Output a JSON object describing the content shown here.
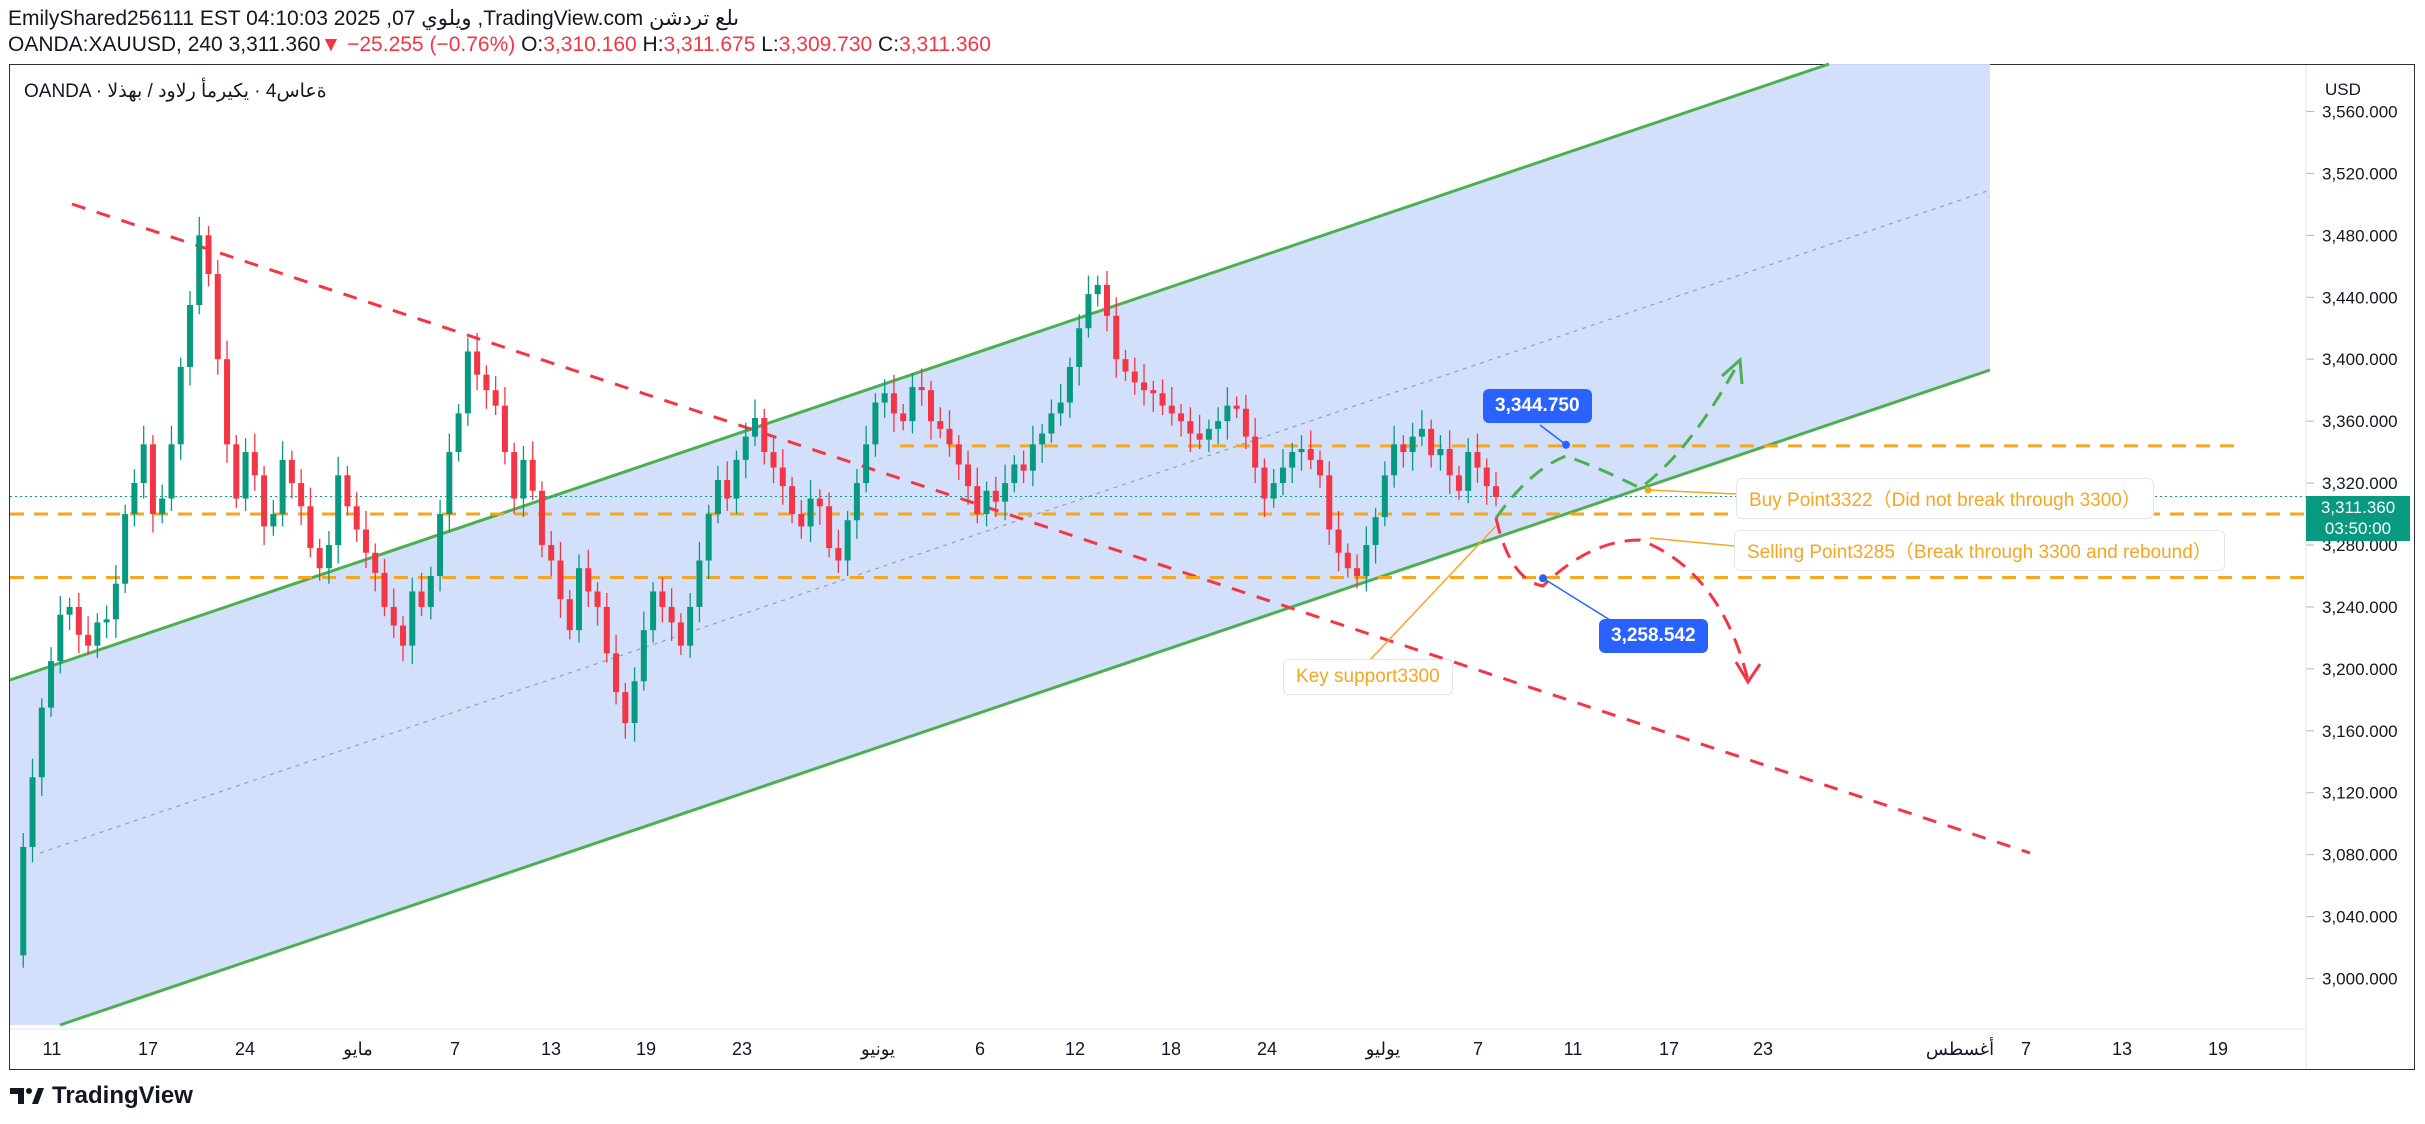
{
  "header": {
    "line1": "EmilyShared256111 EST 04:10:03 2025 ,07 ويلوي ,TradingView.com ىلع تردشن",
    "symbol": "OANDA:XAUUSD, 240",
    "last": "3,311.360",
    "change": "−25.255 (−0.76%)",
    "o_label": "O:",
    "o_value": "3,310.160",
    "h_label": "H:",
    "h_value": "3,311.675",
    "l_label": "L:",
    "l_value": "3,309.730",
    "c_label": "C:",
    "c_value": "3,311.360"
  },
  "legend": "OANDA · ةعاس4 · يكيرمأ رلاود / بهذلا",
  "brand": "TradingView",
  "colors": {
    "channel": "#4caf50",
    "channel_fill": "#d1defb",
    "bear": "#f23645",
    "bull": "#089981",
    "level": "#f5a623",
    "marker": "#2962ff",
    "price_tag": "#089981"
  },
  "chart_data": {
    "type": "candlestick",
    "symbol": "XAUUSD",
    "timeframe": "4h",
    "ylim": [
      2970,
      3590
    ],
    "y_ticks": [
      "3,000.000",
      "3,040.000",
      "3,080.000",
      "3,120.000",
      "3,160.000",
      "3,200.000",
      "3,240.000",
      "3,280.000",
      "3,320.000",
      "3,360.000",
      "3,400.000",
      "3,440.000",
      "3,480.000",
      "3,520.000",
      "3,560.000"
    ],
    "y_unit": "USD",
    "x_ticks": [
      "11",
      "17",
      "24",
      "مايو",
      "7",
      "13",
      "19",
      "23",
      "يونيو",
      "6",
      "12",
      "18",
      "24",
      "يوليو",
      "7",
      "11",
      "17",
      "23",
      "أغسطس",
      "7",
      "13",
      "19"
    ],
    "grid": false,
    "price_now": "3,311.360",
    "countdown": "03:50:00",
    "price_path": [
      3015,
      3085,
      3130,
      3175,
      3205,
      3235,
      3240,
      3222,
      3215,
      3230,
      3232,
      3255,
      3300,
      3320,
      3345,
      3300,
      3310,
      3345,
      3395,
      3435,
      3480,
      3455,
      3400,
      3345,
      3310,
      3340,
      3325,
      3292,
      3300,
      3335,
      3320,
      3305,
      3278,
      3265,
      3280,
      3325,
      3305,
      3290,
      3275,
      3262,
      3240,
      3228,
      3215,
      3250,
      3240,
      3260,
      3300,
      3340,
      3365,
      3405,
      3390,
      3380,
      3370,
      3340,
      3310,
      3335,
      3315,
      3280,
      3270,
      3245,
      3225,
      3265,
      3250,
      3240,
      3210,
      3185,
      3165,
      3192,
      3225,
      3250,
      3240,
      3230,
      3215,
      3240,
      3270,
      3300,
      3322,
      3310,
      3335,
      3350,
      3362,
      3340,
      3330,
      3318,
      3300,
      3292,
      3310,
      3305,
      3278,
      3270,
      3296,
      3320,
      3345,
      3372,
      3378,
      3365,
      3360,
      3382,
      3380,
      3360,
      3355,
      3345,
      3332,
      3318,
      3300,
      3315,
      3308,
      3320,
      3332,
      3328,
      3345,
      3352,
      3365,
      3372,
      3395,
      3420,
      3442,
      3448,
      3428,
      3400,
      3392,
      3385,
      3380,
      3378,
      3370,
      3365,
      3360,
      3352,
      3348,
      3355,
      3360,
      3370,
      3368,
      3350,
      3330,
      3310,
      3320,
      3330,
      3340,
      3342,
      3335,
      3325,
      3290,
      3275,
      3265,
      3260,
      3280,
      3298,
      3325,
      3345,
      3340,
      3350,
      3355,
      3338,
      3342,
      3325,
      3315,
      3340,
      3330,
      3318,
      3311
    ],
    "annotations": {
      "resistance_line": "",
      "levels": [
        3344,
        3300,
        3259
      ],
      "markers": [
        {
          "value": 3344.75,
          "label": "3,344.750"
        },
        {
          "value": 3258.542,
          "label": "3,258.542"
        }
      ],
      "buy_label": "Buy Point3322（Did not break through 3300）",
      "sell_label": "Selling Point3285（Break through 3300 and rebound）",
      "support_label": "Key support3300"
    }
  }
}
